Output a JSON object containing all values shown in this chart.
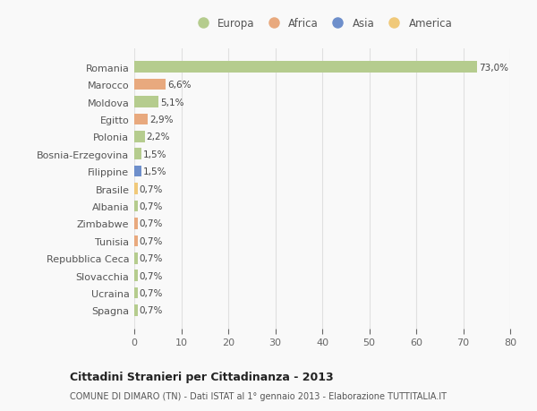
{
  "countries": [
    "Romania",
    "Marocco",
    "Moldova",
    "Egitto",
    "Polonia",
    "Bosnia-Erzegovina",
    "Filippine",
    "Brasile",
    "Albania",
    "Zimbabwe",
    "Tunisia",
    "Repubblica Ceca",
    "Slovacchia",
    "Ucraina",
    "Spagna"
  ],
  "values": [
    73.0,
    6.6,
    5.1,
    2.9,
    2.2,
    1.5,
    1.5,
    0.7,
    0.7,
    0.7,
    0.7,
    0.7,
    0.7,
    0.7,
    0.7
  ],
  "labels": [
    "73,0%",
    "6,6%",
    "5,1%",
    "2,9%",
    "2,2%",
    "1,5%",
    "1,5%",
    "0,7%",
    "0,7%",
    "0,7%",
    "0,7%",
    "0,7%",
    "0,7%",
    "0,7%",
    "0,7%"
  ],
  "continents": [
    "Europa",
    "Africa",
    "Europa",
    "Africa",
    "Europa",
    "Europa",
    "Asia",
    "America",
    "Europa",
    "Africa",
    "Africa",
    "Europa",
    "Europa",
    "Europa",
    "Europa"
  ],
  "colors": {
    "Europa": "#b5cc8e",
    "Africa": "#e8a97e",
    "Asia": "#6e8fcb",
    "America": "#f0c97a"
  },
  "legend_order": [
    "Europa",
    "Africa",
    "Asia",
    "America"
  ],
  "title": "Cittadini Stranieri per Cittadinanza - 2013",
  "subtitle": "COMUNE DI DIMARO (TN) - Dati ISTAT al 1° gennaio 2013 - Elaborazione TUTTITALIA.IT",
  "xlim": [
    0,
    80
  ],
  "xticks": [
    0,
    10,
    20,
    30,
    40,
    50,
    60,
    70,
    80
  ],
  "background_color": "#f9f9f9",
  "grid_color": "#e0e0e0"
}
